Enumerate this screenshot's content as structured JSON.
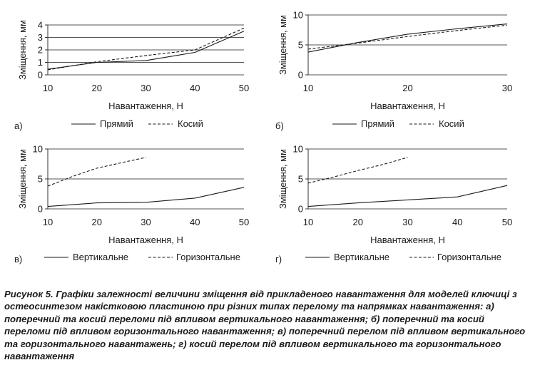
{
  "figure": {
    "caption_lead": "Рисунок 5.",
    "caption_text": "Графіки залежності величини зміщення від прикладеного навантаження для моделей ключиці з остеосинтезом накістковою пластиною при різних типах перелому та напрямках навантаження: а) поперечний та косий переломи під впливом вертикального навантаження; б) поперечний та косий переломи під впливом горизонтального навантаження; в) поперечний перелом під впливом вертикального та горизонтального навантажень; г) косий перелом під впливом вертикального та горизонтального навантаження"
  },
  "chart_data": [
    {
      "panel": "а)",
      "type": "line",
      "xlabel": "Навантаження, Н",
      "ylabel": "Зміщення, мм",
      "xlim": [
        10,
        50
      ],
      "ylim": [
        0,
        4
      ],
      "xticks": [
        10,
        20,
        30,
        40,
        50
      ],
      "yticks": [
        0,
        1,
        2,
        3,
        4
      ],
      "grid": "horizontal",
      "legend_position": "bottom",
      "series": [
        {
          "name": "Прямий",
          "style": "solid",
          "x": [
            10,
            20,
            30,
            40,
            50
          ],
          "y": [
            0.45,
            1.0,
            1.15,
            1.8,
            3.5
          ]
        },
        {
          "name": "Косий",
          "style": "dashed",
          "x": [
            10,
            20,
            30,
            40,
            50
          ],
          "y": [
            0.4,
            1.05,
            1.55,
            2.0,
            3.75
          ]
        }
      ]
    },
    {
      "panel": "б)",
      "type": "line",
      "xlabel": "Навантаження, Н",
      "ylabel": "Зміщення, мм",
      "xlim": [
        10,
        30
      ],
      "ylim": [
        0,
        10
      ],
      "xticks": [
        10,
        20,
        30
      ],
      "yticks": [
        0,
        5,
        10
      ],
      "grid": "horizontal",
      "legend_position": "bottom",
      "series": [
        {
          "name": "Прямий",
          "style": "solid",
          "x": [
            10,
            15,
            20,
            25,
            30
          ],
          "y": [
            3.8,
            5.4,
            6.8,
            7.7,
            8.5
          ]
        },
        {
          "name": "Косий",
          "style": "dashed",
          "x": [
            10,
            15,
            20,
            25,
            30
          ],
          "y": [
            4.3,
            5.3,
            6.4,
            7.4,
            8.3
          ]
        }
      ]
    },
    {
      "panel": "в)",
      "type": "line",
      "xlabel": "Навантаження, Н",
      "ylabel": "Зміщення, мм",
      "xlim": [
        10,
        50
      ],
      "ylim": [
        0,
        10
      ],
      "xticks": [
        10,
        20,
        30,
        40,
        50
      ],
      "yticks": [
        0,
        5,
        10
      ],
      "grid": "horizontal",
      "legend_position": "bottom",
      "series": [
        {
          "name": "Вертикальне",
          "style": "solid",
          "x": [
            10,
            20,
            30,
            40,
            50
          ],
          "y": [
            0.4,
            1.0,
            1.1,
            1.8,
            3.6
          ]
        },
        {
          "name": "Горизонтальне",
          "style": "dashed",
          "x": [
            10,
            15,
            20,
            25,
            30
          ],
          "y": [
            3.8,
            5.4,
            6.8,
            7.7,
            8.6
          ]
        }
      ]
    },
    {
      "panel": "г)",
      "type": "line",
      "xlabel": "Навантаження, Н",
      "ylabel": "Зміщення, мм",
      "xlim": [
        10,
        50
      ],
      "ylim": [
        0,
        10
      ],
      "xticks": [
        10,
        20,
        30,
        40,
        50
      ],
      "yticks": [
        0,
        5,
        10
      ],
      "grid": "horizontal",
      "legend_position": "bottom",
      "series": [
        {
          "name": "Вертикальне",
          "style": "solid",
          "x": [
            10,
            20,
            30,
            40,
            50
          ],
          "y": [
            0.4,
            1.0,
            1.5,
            2.0,
            3.9
          ]
        },
        {
          "name": "Горизонтальне",
          "style": "dashed",
          "x": [
            10,
            15,
            20,
            25,
            30
          ],
          "y": [
            4.3,
            5.3,
            6.4,
            7.4,
            8.6
          ]
        }
      ]
    }
  ]
}
